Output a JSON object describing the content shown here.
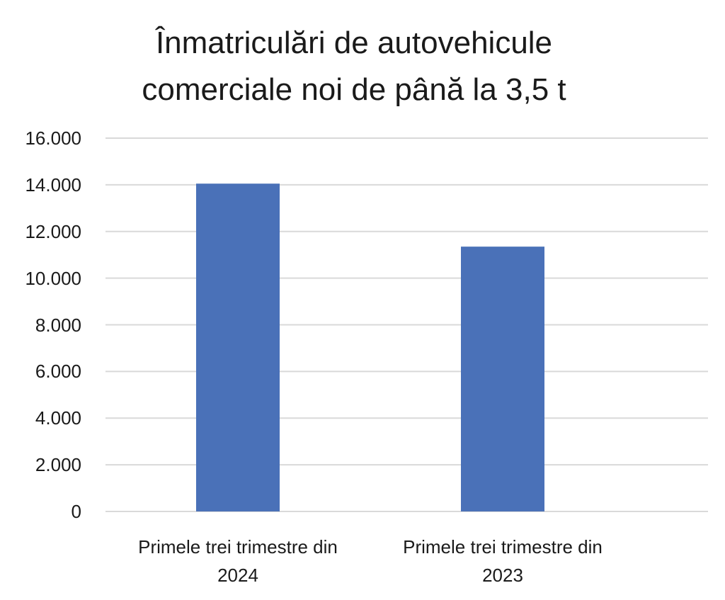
{
  "chart_data": {
    "type": "bar",
    "title": "Înmatriculări de autovehicule comerciale noi de până la 3,5 t",
    "categories": [
      "Primele trei trimestre din 2024",
      "Primele trei trimestre din 2023"
    ],
    "values": [
      14050,
      11350
    ],
    "color": "#4a71b8",
    "ylim": [
      0,
      16000
    ],
    "yticks": [
      0,
      {
        "value": 2000,
        "label": "2.000"
      },
      {
        "value": 4000,
        "label": "4.000"
      },
      {
        "value": 6000,
        "label": "6.000"
      },
      {
        "value": 8000,
        "label": "8.000"
      },
      {
        "value": 10000,
        "label": "10.000"
      },
      {
        "value": 12000,
        "label": "12.000"
      },
      {
        "value": 14000,
        "label": "14.000"
      },
      {
        "value": 16000,
        "label": "16.000"
      }
    ],
    "grid": true
  }
}
